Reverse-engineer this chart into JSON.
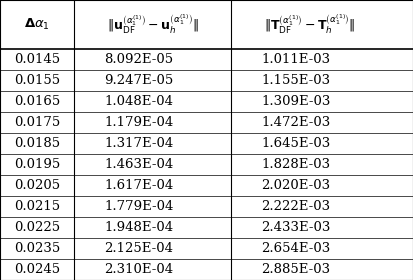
{
  "delta_alpha": [
    "0.0145",
    "0.0155",
    "0.0165",
    "0.0175",
    "0.0185",
    "0.0195",
    "0.0205",
    "0.0215",
    "0.0225",
    "0.0235",
    "0.0245"
  ],
  "col2": [
    "8.092E-05",
    "9.247E-05",
    "1.048E-04",
    "1.179E-04",
    "1.317E-04",
    "1.463E-04",
    "1.617E-04",
    "1.779E-04",
    "1.948E-04",
    "2.125E-04",
    "2.310E-04"
  ],
  "col3": [
    "1.011E-03",
    "1.155E-03",
    "1.309E-03",
    "1.472E-03",
    "1.645E-03",
    "1.828E-03",
    "2.020E-03",
    "2.222E-03",
    "2.433E-03",
    "2.654E-03",
    "2.885E-03"
  ],
  "bg_color": "#ffffff",
  "text_color": "#000000",
  "line_color": "#000000",
  "header_fontsize": 9.5,
  "data_fontsize": 9.5,
  "figsize": [
    4.13,
    2.8
  ],
  "dpi": 100
}
